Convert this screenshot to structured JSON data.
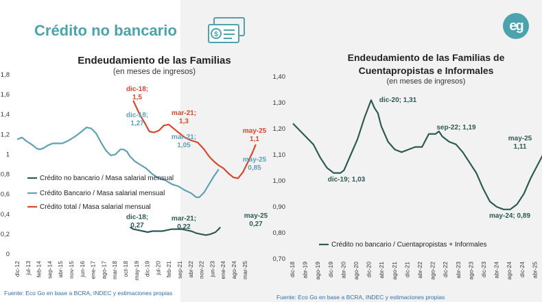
{
  "header": {
    "title": "Crédito no bancario",
    "icon": "money-card-icon",
    "logo_text": "eg",
    "accent_color": "#4aa3ad"
  },
  "colors": {
    "no_bancario": "#2c5a52",
    "bancario": "#5fa0b5",
    "total": "#d9472b",
    "cuentapropistas": "#2c5a52"
  },
  "chart_data": [
    {
      "type": "line",
      "title": "Endeudamiento de las Familias",
      "subtitle": "(en meses de ingresos)",
      "ylim": [
        0,
        1.8
      ],
      "yticks": [
        "0",
        "0,2",
        "0,4",
        "0,6",
        "0,8",
        "1",
        "1,2",
        "1,4",
        "1,6",
        "1,8"
      ],
      "xticks": [
        "dic-12",
        "jul-13",
        "feb-14",
        "sep-14",
        "abr-15",
        "nov-15",
        "jun-16",
        "ene-17",
        "ago-17",
        "mar-18",
        "oct-18",
        "may-19",
        "dic-19",
        "jul-20",
        "feb-21",
        "sep-21",
        "abr-22",
        "nov-22",
        "jun-23",
        "ene-24",
        "ago-24",
        "mar-25"
      ],
      "series": [
        {
          "name": "Crédito no bancario / Masa salarial mensual",
          "color_key": "no_bancario",
          "points": [
            [
              70,
              0.27
            ],
            [
              72,
              0.25
            ],
            [
              75,
              0.24
            ],
            [
              78,
              0.23
            ],
            [
              81,
              0.22
            ],
            [
              84,
              0.23
            ],
            [
              87,
              0.23
            ],
            [
              90,
              0.23
            ],
            [
              93,
              0.24
            ],
            [
              96,
              0.25
            ],
            [
              99,
              0.25
            ],
            [
              102,
              0.25
            ],
            [
              105,
              0.24
            ],
            [
              108,
              0.23
            ],
            [
              111,
              0.21
            ],
            [
              114,
              0.2
            ],
            [
              117,
              0.19
            ],
            [
              120,
              0.2
            ],
            [
              123,
              0.22
            ],
            [
              125,
              0.25
            ],
            [
              126,
              0.27
            ]
          ]
        },
        {
          "name": "Crédito Bancario / Masa salarial mensual",
          "color_key": "bancario",
          "points": [
            [
              0,
              1.15
            ],
            [
              3,
              1.17
            ],
            [
              6,
              1.13
            ],
            [
              9,
              1.1
            ],
            [
              12,
              1.06
            ],
            [
              14,
              1.05
            ],
            [
              16,
              1.06
            ],
            [
              19,
              1.09
            ],
            [
              22,
              1.11
            ],
            [
              25,
              1.11
            ],
            [
              28,
              1.11
            ],
            [
              32,
              1.14
            ],
            [
              36,
              1.18
            ],
            [
              40,
              1.23
            ],
            [
              43,
              1.27
            ],
            [
              46,
              1.26
            ],
            [
              49,
              1.21
            ],
            [
              52,
              1.12
            ],
            [
              55,
              1.04
            ],
            [
              58,
              0.99
            ],
            [
              61,
              1.0
            ],
            [
              64,
              1.05
            ],
            [
              66,
              1.05
            ],
            [
              68,
              1.03
            ],
            [
              70,
              0.98
            ],
            [
              73,
              0.93
            ],
            [
              76,
              0.9
            ],
            [
              80,
              0.86
            ],
            [
              84,
              0.8
            ],
            [
              88,
              0.76
            ],
            [
              92,
              0.74
            ],
            [
              96,
              0.7
            ],
            [
              100,
              0.68
            ],
            [
              104,
              0.64
            ],
            [
              108,
              0.61
            ],
            [
              111,
              0.57
            ],
            [
              113,
              0.57
            ],
            [
              116,
              0.62
            ],
            [
              119,
              0.7
            ],
            [
              122,
              0.78
            ],
            [
              125,
              0.85
            ]
          ]
        },
        {
          "name": "Crédito total / Masa salarial mensual",
          "color_key": "total",
          "points": [
            [
              72,
              1.54
            ],
            [
              74,
              1.47
            ],
            [
              76,
              1.4
            ],
            [
              79,
              1.32
            ],
            [
              82,
              1.23
            ],
            [
              85,
              1.22
            ],
            [
              88,
              1.24
            ],
            [
              91,
              1.29
            ],
            [
              94,
              1.3
            ],
            [
              97,
              1.26
            ],
            [
              100,
              1.22
            ],
            [
              104,
              1.17
            ],
            [
              108,
              1.14
            ],
            [
              112,
              1.12
            ],
            [
              116,
              1.05
            ],
            [
              119,
              0.98
            ],
            [
              122,
              0.93
            ],
            [
              125,
              0.89
            ],
            [
              128,
              0.86
            ],
            [
              131,
              0.81
            ],
            [
              134,
              0.77
            ],
            [
              137,
              0.76
            ],
            [
              140,
              0.82
            ],
            [
              143,
              0.92
            ],
            [
              146,
              1.02
            ],
            [
              148,
              1.1
            ]
          ]
        }
      ],
      "annotations": [
        {
          "lines": [
            "dic-18;",
            "1,5"
          ],
          "color_key": "total"
        },
        {
          "lines": [
            "mar-21;",
            "1,3"
          ],
          "color_key": "total"
        },
        {
          "lines": [
            "may-25",
            "1,1"
          ],
          "color_key": "total"
        },
        {
          "lines": [
            "dic-18;",
            "1,27"
          ],
          "color_key": "bancario"
        },
        {
          "lines": [
            "mar-21;",
            "1,05"
          ],
          "color_key": "bancario"
        },
        {
          "lines": [
            "may-25",
            "0,85"
          ],
          "color_key": "bancario"
        },
        {
          "lines": [
            "dic-18;",
            "0,27"
          ],
          "color_key": "no_bancario"
        },
        {
          "lines": [
            "mar-21;",
            "0,22"
          ],
          "color_key": "no_bancario"
        },
        {
          "lines": [
            "may-25",
            "0,27"
          ],
          "color_key": "no_bancario"
        }
      ],
      "source": "Fuente: Eco Go en base a BCRA, INDEC y estimaciones propias"
    },
    {
      "type": "line",
      "title_lines": [
        "Endeudamiento de las Familias de",
        "Cuentapropistas e Informales"
      ],
      "subtitle": "(en meses de ingresos)",
      "ylim": [
        0.7,
        1.4
      ],
      "yticks": [
        "0,70",
        "0,80",
        "0,90",
        "1,00",
        "1,10",
        "1,20",
        "1,30",
        "1,40"
      ],
      "xticks": [
        "dic-18",
        "abr-19",
        "ago-19",
        "dic-19",
        "abr-20",
        "ago-20",
        "dic-20",
        "abr-21",
        "ago-21",
        "dic-21",
        "abr-22",
        "ago-22",
        "dic-22",
        "abr-23",
        "ago-23",
        "dic-23",
        "abr-24",
        "ago-24",
        "dic-24",
        "abr-25"
      ],
      "series": [
        {
          "name": "Crédito no bancario / Cuentapropistas + Informales",
          "color_key": "cuentapropistas",
          "points": [
            [
              0,
              1.22
            ],
            [
              3,
              1.18
            ],
            [
              6,
              1.14
            ],
            [
              8,
              1.09
            ],
            [
              10,
              1.05
            ],
            [
              12,
              1.03
            ],
            [
              14,
              1.03
            ],
            [
              15,
              1.04
            ],
            [
              17,
              1.1
            ],
            [
              19,
              1.16
            ],
            [
              21,
              1.24
            ],
            [
              23,
              1.31
            ],
            [
              24,
              1.28
            ],
            [
              25,
              1.26
            ],
            [
              26,
              1.21
            ],
            [
              28,
              1.15
            ],
            [
              30,
              1.12
            ],
            [
              32,
              1.11
            ],
            [
              34,
              1.12
            ],
            [
              36,
              1.13
            ],
            [
              38,
              1.13
            ],
            [
              40,
              1.18
            ],
            [
              42,
              1.18
            ],
            [
              43,
              1.19
            ],
            [
              44,
              1.17
            ],
            [
              46,
              1.15
            ],
            [
              48,
              1.14
            ],
            [
              50,
              1.11
            ],
            [
              52,
              1.07
            ],
            [
              54,
              1.03
            ],
            [
              56,
              0.97
            ],
            [
              58,
              0.92
            ],
            [
              60,
              0.9
            ],
            [
              62,
              0.89
            ],
            [
              64,
              0.89
            ],
            [
              66,
              0.91
            ],
            [
              68,
              0.95
            ],
            [
              70,
              1.01
            ],
            [
              72,
              1.06
            ],
            [
              74,
              1.11
            ]
          ]
        }
      ],
      "annotations": [
        {
          "lines": [
            "dic-20; 1,31"
          ],
          "color_key": "cuentapropistas"
        },
        {
          "lines": [
            "sep-22; 1,19"
          ],
          "color_key": "cuentapropistas"
        },
        {
          "lines": [
            "dic-19; 1,03"
          ],
          "color_key": "cuentapropistas"
        },
        {
          "lines": [
            "may-24; 0,89"
          ],
          "color_key": "cuentapropistas"
        },
        {
          "lines": [
            "may-25",
            "1,11"
          ],
          "color_key": "cuentapropistas"
        }
      ],
      "source": "Fuente: Eco Go en base a BCRA, INDEC y estimaciones propias"
    }
  ]
}
